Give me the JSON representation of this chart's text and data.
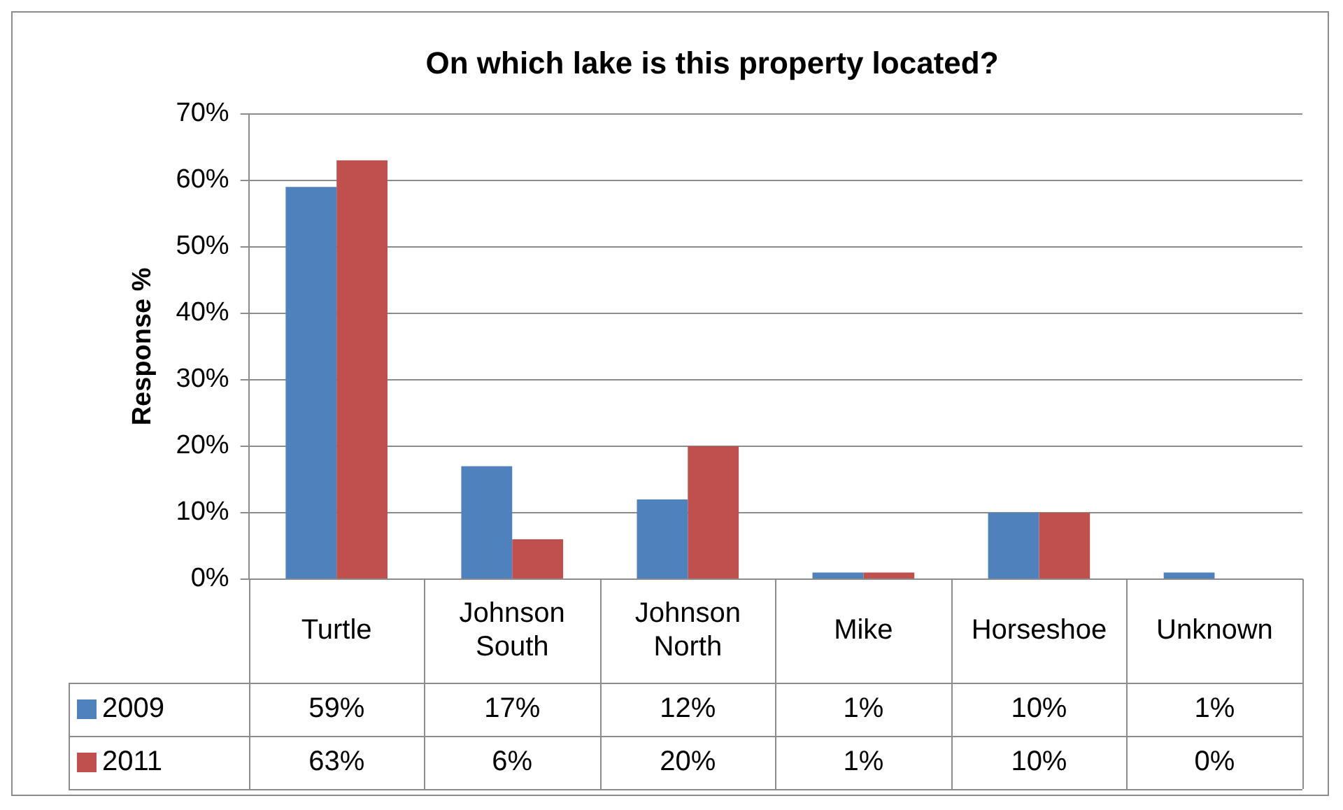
{
  "chart_data": {
    "type": "bar",
    "title": "On which lake is this property located?",
    "ylabel": "Response %",
    "categories": [
      "Turtle",
      "Johnson South",
      "Johnson North",
      "Mike",
      "Horseshoe",
      "Unknown"
    ],
    "series": [
      {
        "name": "2009",
        "color": "#4f81bd",
        "values": [
          59,
          17,
          12,
          1,
          10,
          1
        ],
        "value_labels": [
          "59%",
          "17%",
          "12%",
          "1%",
          "10%",
          "1%"
        ]
      },
      {
        "name": "2011",
        "color": "#c0504d",
        "values": [
          63,
          6,
          20,
          1,
          10,
          0
        ],
        "value_labels": [
          "63%",
          "6%",
          "20%",
          "1%",
          "10%",
          "0%"
        ]
      }
    ],
    "ylim": [
      0,
      70
    ],
    "yticks": [
      {
        "value": 0,
        "label": "0%"
      },
      {
        "value": 10,
        "label": "10%"
      },
      {
        "value": 20,
        "label": "20%"
      },
      {
        "value": 30,
        "label": "30%"
      },
      {
        "value": 40,
        "label": "40%"
      },
      {
        "value": 50,
        "label": "50%"
      },
      {
        "value": 60,
        "label": "60%"
      },
      {
        "value": 70,
        "label": "70%"
      }
    ],
    "grid": "y",
    "legend": "bottom"
  }
}
